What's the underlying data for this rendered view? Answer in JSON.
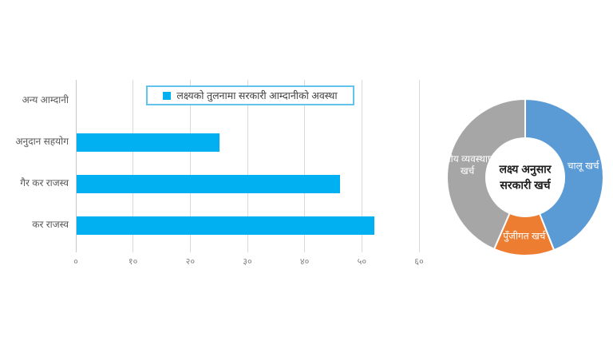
{
  "colors": {
    "background": "#ffffff",
    "bar_blue": "#00B0F0",
    "legend_border": "#62C4EC",
    "gridline": "#D9D9D9",
    "axis_tick_text": "#7F7F7F",
    "category_text": "#595959",
    "legend_text": "#3F3F3F",
    "donut_blue": "#5B9BD5",
    "donut_orange": "#ED7D31",
    "donut_gray": "#A6A6A6",
    "donut_label_text": "#FFFFFF",
    "donut_center_text": "#1F1F1F"
  },
  "chart_data": [
    {
      "type": "bar",
      "orientation": "horizontal",
      "title": "",
      "legend_label": "लक्ष्यको तुलनामा सरकारी आम्दानीको अवस्था",
      "legend_position": "top-inside",
      "legend_marker": "square-icon",
      "categories": [
        "अन्य आम्दानी",
        "अनुदान सहयोग",
        "गैर कर राजस्व",
        "कर राजस्व"
      ],
      "values": [
        0,
        25,
        46,
        52
      ],
      "xlim": [
        0,
        60
      ],
      "x_ticks": [
        0,
        10,
        20,
        30,
        40,
        50,
        60
      ],
      "x_tick_labels": [
        "०",
        "१०",
        "२०",
        "३०",
        "४०",
        "५०",
        "६०"
      ],
      "grid": true,
      "bar_color": "#00B0F0"
    },
    {
      "type": "pie",
      "subtype": "donut",
      "direction": "clockwise",
      "start_angle_deg": 0,
      "center_label": [
        "लक्ष्य अनुसार",
        "सरकारी खर्च"
      ],
      "slices": [
        {
          "label": "चालू खर्च",
          "value": 44,
          "color": "#5B9BD5"
        },
        {
          "label": "पुँजीगत खर्च",
          "value": 12.5,
          "color": "#ED7D31"
        },
        {
          "label": "वित्तीय व्यवस्थापन खर्च",
          "value": 43.5,
          "color": "#A6A6A6"
        }
      ]
    }
  ]
}
